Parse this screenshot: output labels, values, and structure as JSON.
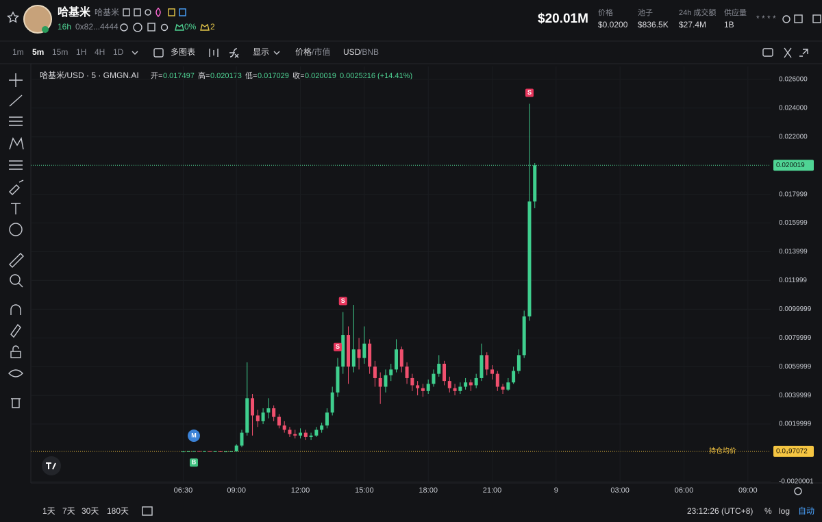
{
  "header": {
    "name": "哈基米",
    "alias": "哈基米",
    "age": "16h",
    "address": "0x82...4444",
    "change": "0%",
    "holders": "2",
    "market_cap": "$20.01M",
    "stats": [
      {
        "label": "价格",
        "value": "$0.0200"
      },
      {
        "label": "池子",
        "value": "$836.5K"
      },
      {
        "label": "24h 成交额",
        "value": "$27.4M"
      },
      {
        "label": "供应量",
        "value": "1B"
      }
    ],
    "masked": "* * * *"
  },
  "toolbar": {
    "intervals": [
      "1m",
      "5m",
      "15m",
      "1H",
      "4H",
      "1D"
    ],
    "multi_chart": "多图表",
    "display": "显示",
    "price_mode": [
      "价格",
      "/市值"
    ],
    "currency": [
      "USD",
      "/BNB"
    ]
  },
  "legend": {
    "symbol": "哈基米/USD · 5 · GMGN.AI",
    "ohlc": [
      {
        "label": "开=",
        "value": "0.017497"
      },
      {
        "label": "高=",
        "value": "0.020173"
      },
      {
        "label": "低=",
        "value": "0.017029"
      },
      {
        "label": "收=",
        "value": "0.020019"
      }
    ],
    "change": "0.0025216 (+14.41%)"
  },
  "chart_data": {
    "type": "candlestick",
    "x": [
      "06:30",
      "06:45",
      "07:00",
      "07:15",
      "07:30",
      "07:45",
      "08:00",
      "08:15",
      "08:30",
      "08:45",
      "09:00",
      "09:15",
      "09:30",
      "09:45",
      "10:00",
      "10:15",
      "10:30",
      "10:45",
      "11:00",
      "11:15",
      "11:30",
      "11:45",
      "12:00",
      "12:15",
      "12:30",
      "12:45",
      "13:00",
      "13:15",
      "13:30",
      "13:45",
      "14:00",
      "14:15",
      "14:30",
      "14:45",
      "15:00",
      "15:15",
      "15:30",
      "15:45",
      "16:00",
      "16:15",
      "16:30",
      "16:45",
      "17:00",
      "17:15",
      "17:30",
      "17:45",
      "18:00",
      "18:15",
      "18:30",
      "18:45",
      "19:00",
      "19:15",
      "19:30",
      "19:45",
      "20:00",
      "20:15",
      "20:30",
      "20:45",
      "21:00",
      "21:15",
      "21:30",
      "21:45",
      "22:00",
      "22:15",
      "22:30",
      "22:45",
      "23:00"
    ],
    "open": [
      8e-05,
      9e-05,
      0.0001,
      0.00012,
      0.0001,
      0.00011,
      9e-05,
      0.0001,
      8e-05,
      9e-05,
      0.0001,
      0.0005,
      0.0014,
      0.0038,
      0.0026,
      0.0022,
      0.0028,
      0.0031,
      0.0025,
      0.0019,
      0.0016,
      0.0013,
      0.0012,
      0.0014,
      0.0011,
      0.0012,
      0.0016,
      0.0019,
      0.0028,
      0.0042,
      0.006,
      0.0082,
      0.006,
      0.0072,
      0.0066,
      0.0076,
      0.006,
      0.0052,
      0.0046,
      0.0054,
      0.0058,
      0.0072,
      0.006,
      0.0052,
      0.0047,
      0.0045,
      0.0043,
      0.0048,
      0.0055,
      0.0062,
      0.005,
      0.0045,
      0.0043,
      0.0046,
      0.0049,
      0.0047,
      0.0052,
      0.0068,
      0.0058,
      0.0055,
      0.0046,
      0.0044,
      0.0049,
      0.0057,
      0.0068,
      0.0095,
      0.017497
    ],
    "high": [
      0.00012,
      0.00013,
      0.00014,
      0.00013,
      0.00013,
      0.00012,
      0.00012,
      0.00011,
      0.00011,
      0.00012,
      0.0006,
      0.0016,
      0.0063,
      0.0041,
      0.003,
      0.0031,
      0.0038,
      0.0033,
      0.0027,
      0.0022,
      0.0018,
      0.0016,
      0.0017,
      0.0016,
      0.0014,
      0.0018,
      0.0021,
      0.0031,
      0.0046,
      0.0066,
      0.0098,
      0.0088,
      0.0103,
      0.008,
      0.0088,
      0.0079,
      0.0064,
      0.0056,
      0.0058,
      0.0062,
      0.0079,
      0.0074,
      0.0063,
      0.0055,
      0.005,
      0.0048,
      0.0051,
      0.0058,
      0.0068,
      0.0064,
      0.0053,
      0.0048,
      0.0049,
      0.0052,
      0.0051,
      0.0055,
      0.0076,
      0.007,
      0.0061,
      0.0057,
      0.0048,
      0.0052,
      0.006,
      0.0072,
      0.0099,
      0.0243,
      0.020173
    ],
    "low": [
      6e-05,
      7e-05,
      8e-05,
      8e-05,
      8e-05,
      7e-05,
      7e-05,
      6e-05,
      6e-05,
      7e-05,
      8e-05,
      0.0004,
      0.0012,
      0.0012,
      0.0018,
      0.002,
      0.0024,
      0.0022,
      0.0017,
      0.0014,
      0.0011,
      0.001,
      0.001,
      0.0009,
      0.0009,
      0.0011,
      0.0014,
      0.0017,
      0.0026,
      0.0039,
      0.0055,
      0.0048,
      0.0056,
      0.0058,
      0.0062,
      0.0055,
      0.0046,
      0.0034,
      0.0042,
      0.005,
      0.0056,
      0.0056,
      0.0048,
      0.0043,
      0.004,
      0.0039,
      0.0041,
      0.0046,
      0.0053,
      0.0047,
      0.0042,
      0.004,
      0.0041,
      0.0044,
      0.0043,
      0.0045,
      0.005,
      0.0054,
      0.0051,
      0.0043,
      0.0041,
      0.0043,
      0.0048,
      0.0055,
      0.0066,
      0.0092,
      0.017029
    ],
    "close": [
      9e-05,
      0.0001,
      0.00012,
      0.0001,
      0.00011,
      9e-05,
      0.0001,
      8e-05,
      9e-05,
      0.0001,
      0.0005,
      0.0014,
      0.0038,
      0.0026,
      0.0022,
      0.0028,
      0.0031,
      0.0025,
      0.0019,
      0.0016,
      0.0013,
      0.0012,
      0.0014,
      0.0011,
      0.0012,
      0.0016,
      0.0019,
      0.0028,
      0.0042,
      0.006,
      0.0082,
      0.006,
      0.0072,
      0.0066,
      0.0076,
      0.006,
      0.0052,
      0.0046,
      0.0054,
      0.0058,
      0.0072,
      0.006,
      0.0052,
      0.0047,
      0.0045,
      0.0043,
      0.0048,
      0.0055,
      0.0062,
      0.005,
      0.0045,
      0.0043,
      0.0046,
      0.0049,
      0.0047,
      0.0052,
      0.0068,
      0.0058,
      0.0055,
      0.0046,
      0.0044,
      0.0049,
      0.0057,
      0.0068,
      0.0095,
      0.017497,
      0.020019
    ],
    "up_color": "#3fcf8e",
    "down_color": "#f0506e",
    "xlim": [
      -39,
      2044
    ],
    "xticks": [
      "06:30",
      "09:00",
      "12:00",
      "15:00",
      "18:00",
      "21:00",
      "9",
      "03:00",
      "06:00",
      "09:00"
    ],
    "ylim": [
      -0.0021,
      0.0269
    ],
    "yticks": [
      {
        "value": 0.026,
        "label": "0.026000"
      },
      {
        "value": 0.024,
        "label": "0.024000"
      },
      {
        "value": 0.022,
        "label": "0.022000"
      },
      0.017999,
      0.015999,
      0.013999,
      0.011999,
      0.0099999,
      0.0079999,
      0.0059999,
      0.0039999,
      0.0019999,
      -0.0020001
    ],
    "grid": true,
    "price_line": {
      "value": 0.020019,
      "label": "0.020019",
      "color": "#4fd494"
    },
    "avg_line": {
      "value": 9.7072e-05,
      "label": "0.0₄97072",
      "name": "持仓均价",
      "color": "#f5c542"
    },
    "markers": [
      {
        "label": "M",
        "x": "07:00",
        "side": "above",
        "color": "#3b82d6"
      },
      {
        "label": "B",
        "x": "07:00",
        "side": "below",
        "color": "#3fbf7f"
      },
      {
        "label": "S",
        "x": "13:45",
        "side": "above",
        "color": "#e8365d"
      },
      {
        "label": "S",
        "x": "14:00",
        "side": "above",
        "color": "#e8365d"
      },
      {
        "label": "S",
        "x": "22:45",
        "side": "above",
        "color": "#e8365d"
      }
    ]
  },
  "footer": {
    "ranges": [
      "1天",
      "7天",
      "30天",
      "180天"
    ],
    "clock": "23:12:26 (UTC+8)",
    "percent": "%",
    "log": "log",
    "auto": "自动"
  }
}
